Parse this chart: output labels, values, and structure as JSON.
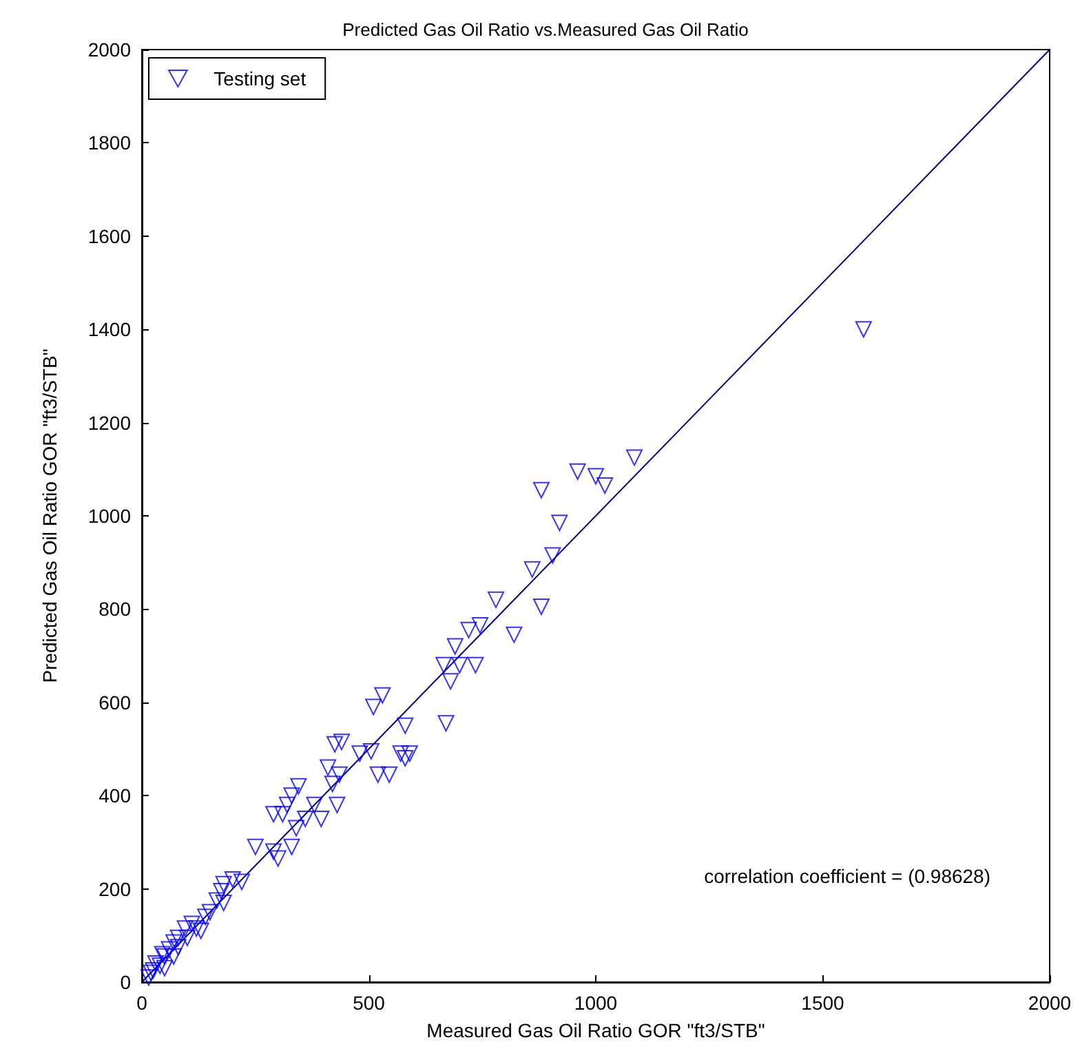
{
  "chart_data": {
    "type": "scatter",
    "title": "Predicted Gas Oil Ratio vs.Measured Gas Oil Ratio",
    "xlabel": "Measured Gas Oil Ratio GOR \"ft3/STB\"",
    "ylabel": "Predicted Gas Oil Ratio GOR \"ft3/STB\"",
    "xlim": [
      0,
      2000
    ],
    "ylim": [
      0,
      2000
    ],
    "xticks": [
      0,
      500,
      1000,
      1500,
      2000
    ],
    "yticks": [
      0,
      200,
      400,
      600,
      800,
      1000,
      1200,
      1400,
      1600,
      1800,
      2000
    ],
    "grid": false,
    "legend": "top left",
    "marker": "triangle",
    "annotations": [
      "correlation coefficient = (0.98628)"
    ],
    "series": [
      {
        "name": "Testing set",
        "color": "#0000ff",
        "x": [
          1590,
          1085,
          1020,
          1000,
          960,
          880,
          920,
          905,
          860,
          880,
          820,
          780,
          745,
          720,
          690,
          700,
          665,
          680,
          670,
          735,
          580,
          530,
          510,
          570,
          580,
          520,
          545,
          505,
          440,
          425,
          410,
          435,
          420,
          430,
          380,
          360,
          395,
          345,
          330,
          320,
          310,
          290,
          290,
          300,
          330,
          340,
          250,
          220,
          200,
          180,
          175,
          180,
          150,
          165,
          140,
          110,
          120,
          95,
          100,
          80,
          70,
          60,
          50,
          45,
          30,
          40,
          25,
          20,
          15,
          50,
          80,
          130,
          70,
          590,
          480
        ],
        "values": [
          1400,
          1125,
          1065,
          1085,
          1095,
          1055,
          985,
          915,
          885,
          805,
          745,
          820,
          765,
          755,
          720,
          680,
          680,
          645,
          555,
          680,
          550,
          615,
          590,
          490,
          480,
          445,
          445,
          495,
          515,
          510,
          460,
          445,
          425,
          380,
          380,
          350,
          350,
          420,
          400,
          380,
          360,
          360,
          280,
          265,
          290,
          330,
          290,
          215,
          220,
          210,
          195,
          170,
          150,
          175,
          140,
          125,
          115,
          115,
          95,
          95,
          85,
          70,
          55,
          60,
          40,
          35,
          25,
          20,
          10,
          30,
          75,
          110,
          55,
          490,
          490
        ]
      },
      {
        "type": "line",
        "color": "#000080",
        "x": [
          0,
          2000
        ],
        "values": [
          0,
          2000
        ],
        "marker": "none"
      }
    ]
  }
}
